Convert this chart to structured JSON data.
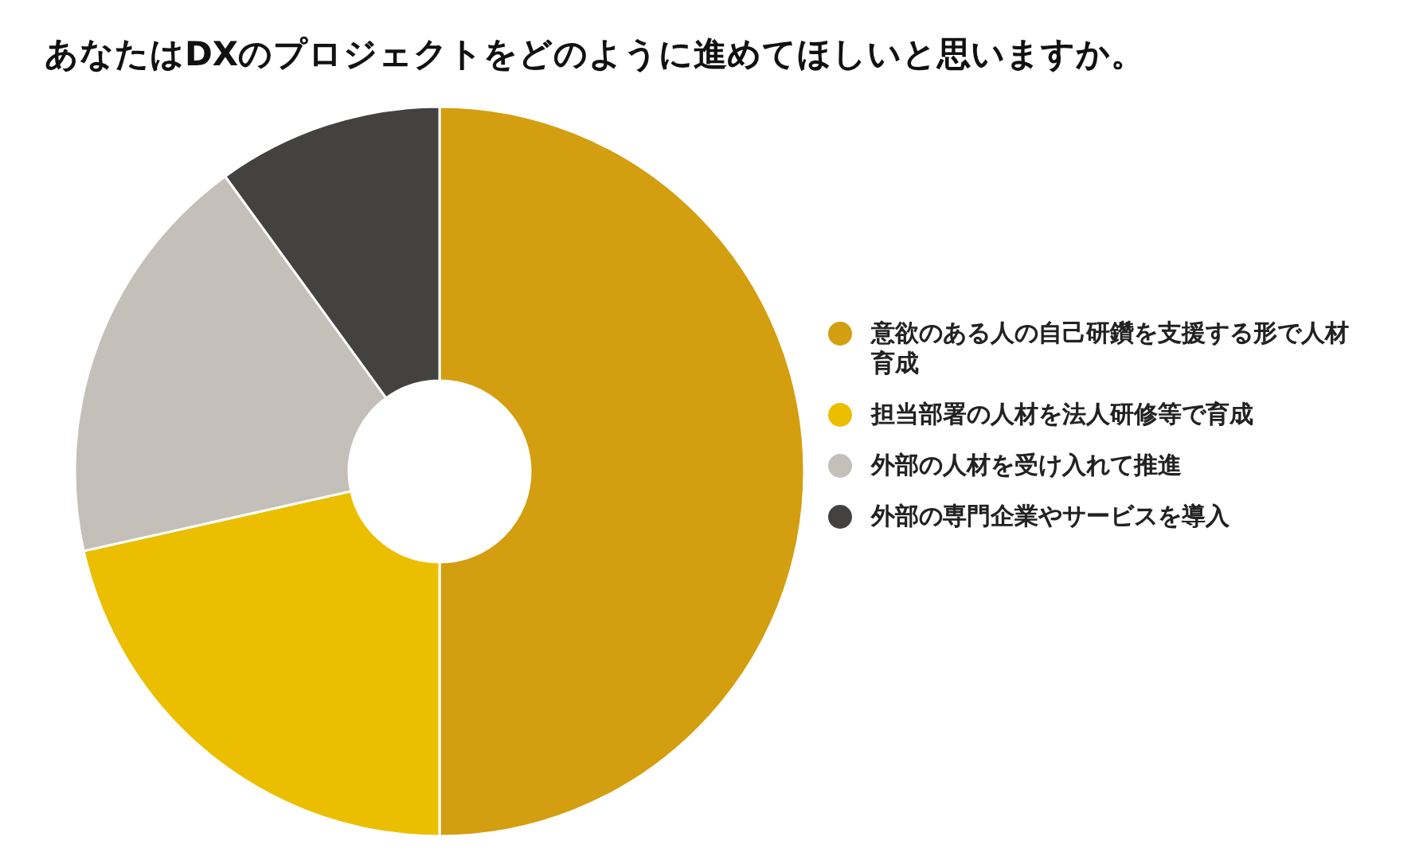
{
  "chart_data": {
    "type": "donut",
    "title": "あなたはDXのプロジェクトをどのように進めてほしいと思いますか。",
    "categories": [
      "意欲のある人の自己研鑽を支援する形で人材育成",
      "担当部署の人材を法人研修等で育成",
      "外部の人材を受け入れて推進",
      "外部の専門企業やサービスを導入"
    ],
    "values": [
      50,
      21.5,
      18.5,
      10
    ],
    "colors": [
      "#d39e0f",
      "#ebbf00",
      "#c4bfb9",
      "#444240"
    ],
    "legend": "right"
  }
}
